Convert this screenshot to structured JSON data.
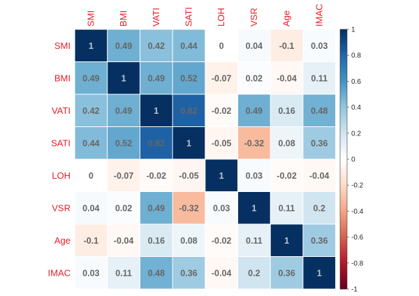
{
  "chart_data": {
    "type": "heatmap",
    "title": "",
    "variables": [
      "SMI",
      "BMI",
      "VATI",
      "SATI",
      "LOH",
      "VSR",
      "Age",
      "IMAC"
    ],
    "matrix": [
      [
        1,
        0.49,
        0.42,
        0.44,
        0,
        0.04,
        -0.1,
        0.03
      ],
      [
        0.49,
        1,
        0.49,
        0.52,
        -0.07,
        0.02,
        -0.04,
        0.11
      ],
      [
        0.42,
        0.49,
        1,
        0.82,
        -0.02,
        0.49,
        0.16,
        0.48
      ],
      [
        0.44,
        0.52,
        0.82,
        1,
        -0.05,
        -0.32,
        0.08,
        0.36
      ],
      [
        0,
        -0.07,
        -0.02,
        -0.05,
        1,
        0.03,
        -0.02,
        -0.04
      ],
      [
        0.04,
        0.02,
        0.49,
        -0.32,
        0.03,
        1,
        0.11,
        0.2
      ],
      [
        -0.1,
        -0.04,
        0.16,
        0.08,
        -0.02,
        0.11,
        1,
        0.36
      ],
      [
        0.03,
        0.11,
        0.48,
        0.36,
        -0.04,
        0.2,
        0.36,
        1
      ]
    ],
    "cell_labels": [
      [
        "1",
        "0.49",
        "0.42",
        "0.44",
        "0",
        "0.04",
        "-0.1",
        "0.03"
      ],
      [
        "0.49",
        "1",
        "0.49",
        "0.52",
        "-0.07",
        "0.02",
        "-0.04",
        "0.11"
      ],
      [
        "0.42",
        "0.49",
        "1",
        "0.82",
        "-0.02",
        "0.49",
        "0.16",
        "0.48"
      ],
      [
        "0.44",
        "0.52",
        "0.82",
        "1",
        "-0.05",
        "-0.32",
        "0.08",
        "0.36"
      ],
      [
        "0",
        "-0.07",
        "-0.02",
        "-0.05",
        "1",
        "0.03",
        "-0.02",
        "-0.04"
      ],
      [
        "0.04",
        "0.02",
        "0.49",
        "-0.32",
        "0.03",
        "1",
        "0.11",
        "0.2"
      ],
      [
        "-0.1",
        "-0.04",
        "0.16",
        "0.08",
        "-0.02",
        "0.11",
        "1",
        "0.36"
      ],
      [
        "0.03",
        "0.11",
        "0.48",
        "0.36",
        "-0.04",
        "0.2",
        "0.36",
        "1"
      ]
    ],
    "colorbar": {
      "range": [
        -1,
        1
      ],
      "ticks": [
        "1",
        "0.8",
        "0.6",
        "0.4",
        "0.2",
        "0",
        "-0.2",
        "-0.4",
        "-0.6",
        "-0.8",
        "-1"
      ],
      "colors": {
        "negative_end": "#67001f",
        "neutral": "#ffffff",
        "positive_end": "#053061"
      }
    },
    "label_color": "#e8202a",
    "text_color": "#666666"
  }
}
